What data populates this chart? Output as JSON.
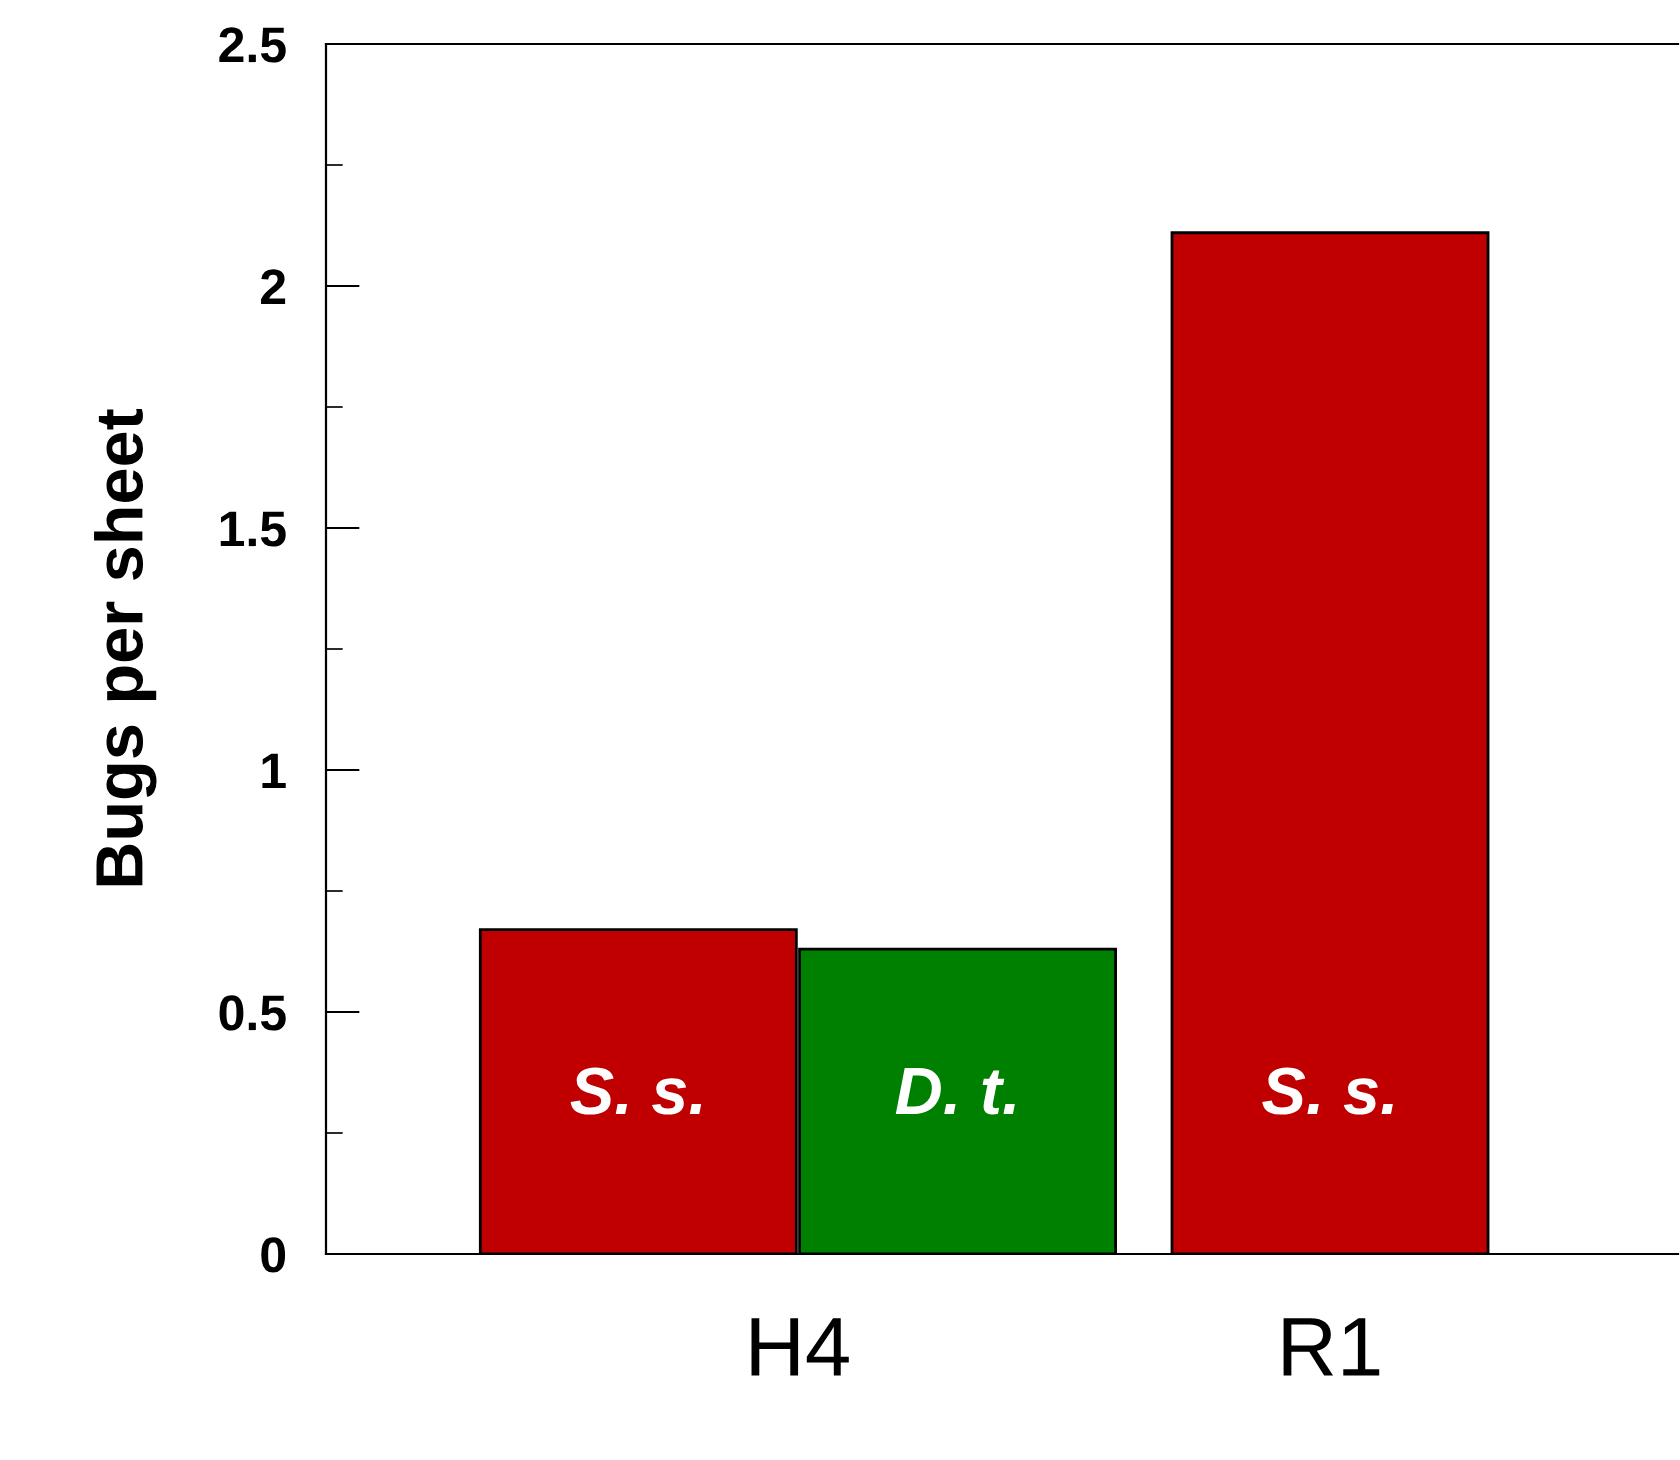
{
  "chart_data": {
    "type": "bar",
    "ylabel": "Bugs per sheet",
    "categories": [
      "H4",
      "R1"
    ],
    "series": [
      {
        "name": "S. s.",
        "color": "#c00000",
        "values": [
          0.67,
          2.11
        ]
      },
      {
        "name": "D. t.",
        "color": "#008000",
        "values": [
          0.63,
          null
        ]
      }
    ],
    "ylim": [
      0,
      2.5
    ],
    "yticks": [
      0,
      0.5,
      1,
      1.5,
      2,
      2.5
    ],
    "grid": false,
    "legend": false
  }
}
